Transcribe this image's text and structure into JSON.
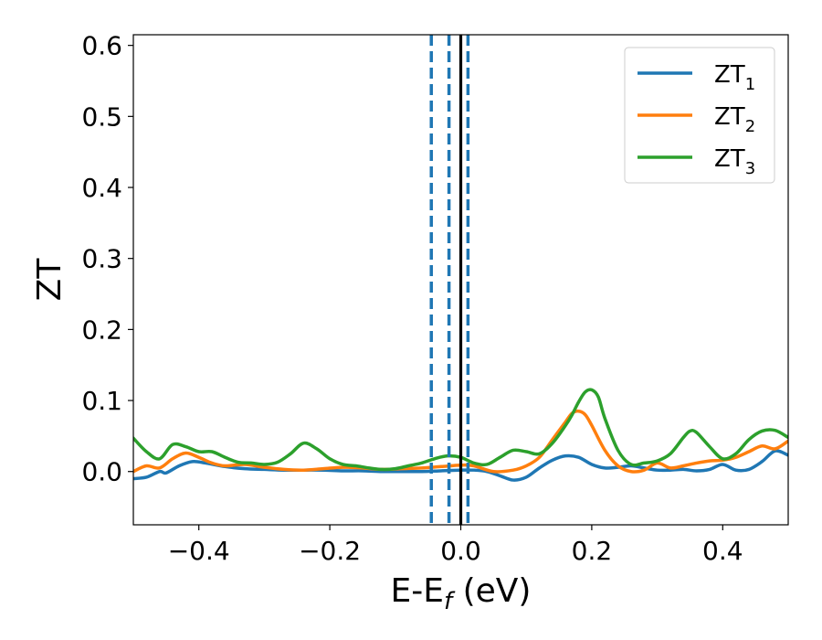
{
  "chart_data": {
    "type": "line",
    "title": "",
    "xlabel": {
      "base": "E-E",
      "sub": "f",
      "rest": " (eV)"
    },
    "ylabel": "ZT",
    "xlim": [
      -0.5,
      0.5
    ],
    "ylim": [
      -0.075,
      0.615
    ],
    "xticks": [
      {
        "value": -0.4,
        "label": "−0.4"
      },
      {
        "value": -0.2,
        "label": "−0.2"
      },
      {
        "value": 0.0,
        "label": "0.0"
      },
      {
        "value": 0.2,
        "label": "0.2"
      },
      {
        "value": 0.4,
        "label": "0.4"
      }
    ],
    "yticks": [
      {
        "value": 0.0,
        "label": "0.0"
      },
      {
        "value": 0.1,
        "label": "0.1"
      },
      {
        "value": 0.2,
        "label": "0.2"
      },
      {
        "value": 0.3,
        "label": "0.3"
      },
      {
        "value": 0.4,
        "label": "0.4"
      },
      {
        "value": 0.5,
        "label": "0.5"
      },
      {
        "value": 0.6,
        "label": "0.6"
      }
    ],
    "grid": false,
    "legend_position": "top-right",
    "vlines": [
      {
        "x": -0.045,
        "style": "dashed",
        "color": "#1f77b4"
      },
      {
        "x": -0.018,
        "style": "dashed",
        "color": "#1f77b4"
      },
      {
        "x": 0.011,
        "style": "dashed",
        "color": "#1f77b4"
      },
      {
        "x": 0.0,
        "style": "solid",
        "color": "#000000"
      }
    ],
    "series": [
      {
        "name": "ZT",
        "sub": "1",
        "color": "#1f77b4",
        "x": [
          -0.5,
          -0.48,
          -0.46,
          -0.45,
          -0.43,
          -0.41,
          -0.39,
          -0.36,
          -0.33,
          -0.3,
          -0.27,
          -0.24,
          -0.21,
          -0.18,
          -0.15,
          -0.12,
          -0.09,
          -0.06,
          -0.03,
          0.0,
          0.02,
          0.04,
          0.06,
          0.08,
          0.1,
          0.12,
          0.14,
          0.16,
          0.18,
          0.2,
          0.22,
          0.24,
          0.26,
          0.28,
          0.3,
          0.32,
          0.34,
          0.36,
          0.38,
          0.4,
          0.42,
          0.44,
          0.46,
          0.48,
          0.5
        ],
        "y": [
          -0.01,
          -0.008,
          0.0,
          -0.002,
          0.008,
          0.014,
          0.012,
          0.007,
          0.004,
          0.003,
          0.002,
          0.002,
          0.002,
          0.001,
          0.001,
          0.0,
          0.0,
          0.0,
          0.001,
          0.002,
          0.002,
          0.0,
          -0.006,
          -0.012,
          -0.008,
          0.005,
          0.016,
          0.022,
          0.02,
          0.01,
          0.005,
          0.006,
          0.008,
          0.005,
          0.002,
          0.002,
          0.003,
          0.001,
          0.003,
          0.01,
          0.002,
          0.003,
          0.014,
          0.029,
          0.023
        ]
      },
      {
        "name": "ZT",
        "sub": "2",
        "color": "#ff7f0e",
        "x": [
          -0.5,
          -0.48,
          -0.46,
          -0.44,
          -0.42,
          -0.4,
          -0.38,
          -0.36,
          -0.33,
          -0.3,
          -0.27,
          -0.24,
          -0.21,
          -0.18,
          -0.15,
          -0.12,
          -0.09,
          -0.06,
          -0.03,
          0.0,
          0.02,
          0.05,
          0.08,
          0.1,
          0.12,
          0.14,
          0.16,
          0.17,
          0.18,
          0.19,
          0.2,
          0.22,
          0.24,
          0.26,
          0.28,
          0.3,
          0.32,
          0.34,
          0.36,
          0.38,
          0.4,
          0.42,
          0.44,
          0.46,
          0.48,
          0.5
        ],
        "y": [
          0.0,
          0.008,
          0.005,
          0.018,
          0.026,
          0.02,
          0.012,
          0.008,
          0.01,
          0.006,
          0.003,
          0.002,
          0.004,
          0.006,
          0.005,
          0.003,
          0.004,
          0.005,
          0.007,
          0.009,
          0.008,
          0.0,
          0.002,
          0.008,
          0.02,
          0.045,
          0.07,
          0.082,
          0.085,
          0.08,
          0.065,
          0.03,
          0.008,
          0.0,
          0.002,
          0.012,
          0.005,
          0.008,
          0.012,
          0.015,
          0.016,
          0.02,
          0.028,
          0.036,
          0.032,
          0.043
        ]
      },
      {
        "name": "ZT",
        "sub": "3",
        "color": "#2ca02c",
        "x": [
          -0.5,
          -0.48,
          -0.46,
          -0.44,
          -0.42,
          -0.4,
          -0.38,
          -0.36,
          -0.34,
          -0.32,
          -0.3,
          -0.28,
          -0.26,
          -0.24,
          -0.22,
          -0.2,
          -0.18,
          -0.16,
          -0.14,
          -0.12,
          -0.1,
          -0.08,
          -0.06,
          -0.04,
          -0.02,
          0.0,
          0.02,
          0.04,
          0.06,
          0.08,
          0.1,
          0.12,
          0.14,
          0.16,
          0.17,
          0.18,
          0.19,
          0.2,
          0.21,
          0.22,
          0.24,
          0.26,
          0.28,
          0.3,
          0.32,
          0.34,
          0.35,
          0.36,
          0.38,
          0.4,
          0.42,
          0.44,
          0.46,
          0.48,
          0.5
        ],
        "y": [
          0.047,
          0.028,
          0.018,
          0.038,
          0.035,
          0.028,
          0.028,
          0.02,
          0.013,
          0.012,
          0.01,
          0.013,
          0.025,
          0.04,
          0.032,
          0.018,
          0.01,
          0.008,
          0.005,
          0.003,
          0.004,
          0.008,
          0.012,
          0.018,
          0.022,
          0.02,
          0.012,
          0.01,
          0.02,
          0.03,
          0.028,
          0.025,
          0.04,
          0.065,
          0.08,
          0.098,
          0.112,
          0.115,
          0.105,
          0.075,
          0.03,
          0.01,
          0.012,
          0.015,
          0.025,
          0.048,
          0.057,
          0.055,
          0.035,
          0.018,
          0.025,
          0.045,
          0.057,
          0.058,
          0.048
        ]
      }
    ]
  }
}
